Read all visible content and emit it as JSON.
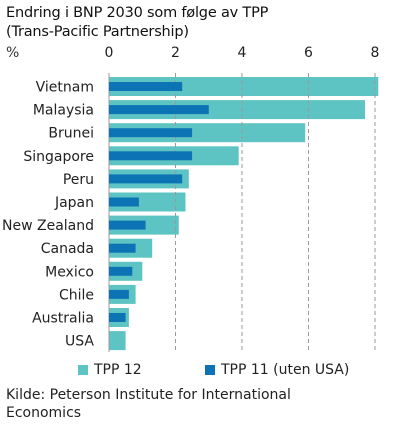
{
  "title_lines": [
    "Endring i BNP 2030 som følge av TPP",
    "(Trans-Pacific Partnership)"
  ],
  "unit": "%",
  "source_text": "Kilde: Peterson Institute for International Economics",
  "colors": {
    "tpp12": "#5ec4c3",
    "tpp11": "#0c74b5",
    "grid": "#9a9a9a",
    "text": "#222222"
  },
  "chart_data": {
    "type": "bar",
    "orientation": "horizontal",
    "title": "Endring i BNP 2030 som følge av TPP (Trans-Pacific Partnership)",
    "xlabel": "",
    "ylabel": "%",
    "xlim": [
      0,
      8
    ],
    "xticks": [
      0,
      2,
      4,
      6,
      8
    ],
    "grid": "vertical dashed",
    "legend_position": "bottom",
    "categories": [
      "Vietnam",
      "Malaysia",
      "Brunei",
      "Singapore",
      "Peru",
      "Japan",
      "New Zealand",
      "Canada",
      "Mexico",
      "Chile",
      "Australia",
      "USA"
    ],
    "series": [
      {
        "name": "TPP 12",
        "values": [
          8.1,
          7.7,
          5.9,
          3.9,
          2.4,
          2.3,
          2.1,
          1.3,
          1.0,
          0.8,
          0.6,
          0.5
        ]
      },
      {
        "name": "TPP 11 (uten USA)",
        "values": [
          2.2,
          3.0,
          2.5,
          2.5,
          2.2,
          0.9,
          1.1,
          0.8,
          0.7,
          0.6,
          0.5,
          null
        ]
      }
    ]
  }
}
